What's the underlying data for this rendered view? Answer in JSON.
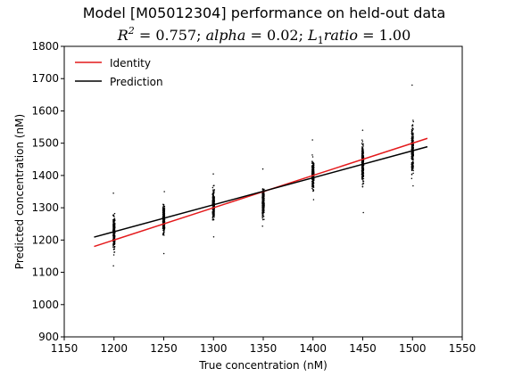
{
  "chart_data": {
    "type": "scatter",
    "title": "Model [M05012304] performance on held-out data",
    "subtitle": "R^2 = 0.757; alpha = 0.02; L_1 ratio = 1.00",
    "subtitle_parts": {
      "r2": "R",
      "r2_sup": "2",
      "r2_val": " = 0.757; ",
      "alpha": "alpha",
      "alpha_val": " = 0.02; ",
      "l": "L",
      "l_sub": "1",
      "ratio": "ratio",
      "ratio_val": " = 1.00"
    },
    "xlabel": "True concentration (nM)",
    "ylabel": "Predicted concentration (nM)",
    "xlim": [
      1150,
      1550
    ],
    "ylim": [
      900,
      1800
    ],
    "x_ticks": [
      1150,
      1200,
      1250,
      1300,
      1350,
      1400,
      1450,
      1500,
      1550
    ],
    "y_ticks": [
      900,
      1000,
      1100,
      1200,
      1300,
      1400,
      1500,
      1600,
      1700,
      1800
    ],
    "legend": {
      "position": "top-left",
      "entries": [
        {
          "name": "Identity",
          "color": "#e41a1c"
        },
        {
          "name": "Prediction",
          "color": "#000000"
        }
      ]
    },
    "identity_line": {
      "x": [
        1180,
        1515
      ],
      "y": [
        1180,
        1515
      ],
      "color": "#e41a1c"
    },
    "prediction_line": {
      "x": [
        1180,
        1515
      ],
      "y": [
        1209,
        1489
      ],
      "color": "#000000"
    },
    "scatter_groups": [
      {
        "x": 1200,
        "y_min": 1120,
        "y_max": 1345,
        "y_center": 1225
      },
      {
        "x": 1250,
        "y_min": 1158,
        "y_max": 1350,
        "y_center": 1260
      },
      {
        "x": 1300,
        "y_min": 1210,
        "y_max": 1405,
        "y_center": 1310
      },
      {
        "x": 1350,
        "y_min": 1243,
        "y_max": 1420,
        "y_center": 1320
      },
      {
        "x": 1400,
        "y_min": 1325,
        "y_max": 1510,
        "y_center": 1400
      },
      {
        "x": 1450,
        "y_min": 1285,
        "y_max": 1540,
        "y_center": 1440
      },
      {
        "x": 1500,
        "y_min": 1368,
        "y_max": 1680,
        "y_center": 1480
      }
    ],
    "grid": false
  }
}
